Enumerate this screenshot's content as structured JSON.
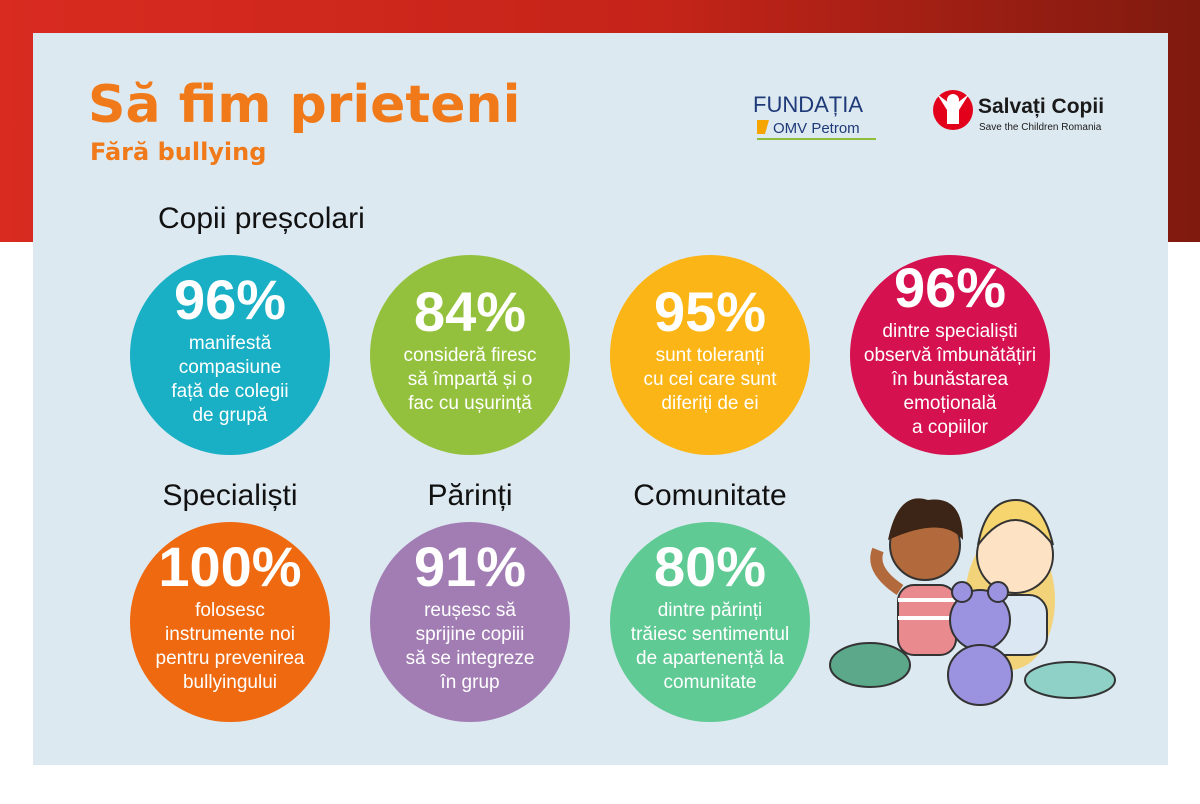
{
  "header": {
    "title": "Să fim prieteni",
    "subtitle": "Fără bullying"
  },
  "logos": {
    "fundatia": "FUNDAȚIA",
    "omv": "OMV Petrom",
    "salvati": "Salvați Copii",
    "save": "Save the Children Romania"
  },
  "sections": [
    {
      "heading": "Copii preșcolari",
      "stats": [
        {
          "value": "96%",
          "lines": [
            "manifestă",
            "compasiune",
            "față de colegii",
            "de grupă"
          ]
        },
        {
          "value": "84%",
          "lines": [
            "consideră firesc",
            "să împartă și o",
            "fac cu ușurință"
          ]
        },
        {
          "value": "95%",
          "lines": [
            "sunt toleranți",
            "cu cei care sunt",
            "diferiți de ei"
          ]
        },
        {
          "value": "96%",
          "lines": [
            "dintre specialiști",
            "observă îmbunătățiri",
            "în bunăstarea",
            "emoțională",
            "a copiilor"
          ]
        }
      ]
    },
    {
      "heading": "Specialiști",
      "stats": [
        {
          "value": "100%",
          "lines": [
            "folosesc",
            "instrumente noi",
            "pentru prevenirea",
            "bullyingului"
          ]
        }
      ]
    },
    {
      "heading": "Părinți",
      "stats": [
        {
          "value": "91%",
          "lines": [
            "reușesc să",
            "sprijine copiii",
            "să se integreze",
            "în grup"
          ]
        }
      ]
    },
    {
      "heading": "Comunitate",
      "stats": [
        {
          "value": "80%",
          "lines": [
            "dintre părinți",
            "trăiesc sentimentul",
            "de apartenență la",
            "comunitate"
          ]
        }
      ]
    }
  ]
}
